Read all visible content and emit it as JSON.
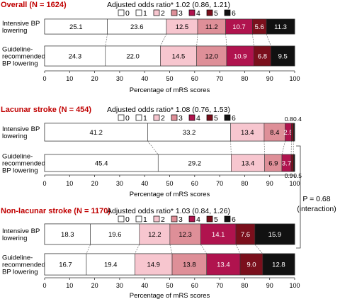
{
  "legend": {
    "labels": [
      "0",
      "1",
      "2",
      "3",
      "4",
      "5",
      "6"
    ],
    "colors": [
      "#ffffff",
      "#ffffff",
      "#f7c6cf",
      "#de8f98",
      "#b0134e",
      "#7a0f1c",
      "#111111"
    ]
  },
  "axis": {
    "xlabel": "Percentage of mRS scores",
    "ticks": [
      0,
      10,
      20,
      30,
      40,
      50,
      60,
      70,
      80,
      90,
      100
    ]
  },
  "interaction": {
    "p_text": "P = 0.68",
    "note": "(interaction)"
  },
  "chart_data": [
    {
      "type": "bar",
      "stacked": true,
      "orientation": "horizontal",
      "title": "Overall (N = 1624)",
      "odds_ratio": "Adjusted odds ratio* 1.02 (0.86, 1.21)",
      "xlabel": "Percentage of mRS scores",
      "xlim": [
        0,
        100
      ],
      "segment_labels": [
        "0",
        "1",
        "2",
        "3",
        "4",
        "5",
        "6"
      ],
      "rows": [
        {
          "label": [
            "Intensive BP",
            "lowering"
          ],
          "values": [
            25.1,
            23.6,
            12.5,
            11.2,
            10.7,
            5.6,
            11.3
          ],
          "value_labels": [
            "25.1",
            "23.6",
            "12.5",
            "11.2",
            "10.7",
            "5.6",
            "11.3"
          ]
        },
        {
          "label": [
            "Guideline-",
            "recommended",
            "BP lowering"
          ],
          "values": [
            24.3,
            22.0,
            14.5,
            12.0,
            10.9,
            6.8,
            9.5
          ],
          "value_labels": [
            "24.3",
            "22.0",
            "14.5",
            "12.0",
            "10.9",
            "6.8",
            "9.5"
          ]
        }
      ]
    },
    {
      "type": "bar",
      "stacked": true,
      "orientation": "horizontal",
      "title": "Lacunar stroke (N = 454)",
      "odds_ratio": "Adjusted odds ratio* 1.08 (0.76, 1.53)",
      "xlabel": "Percentage of mRS scores",
      "xlim": [
        0,
        100
      ],
      "segment_labels": [
        "0",
        "1",
        "2",
        "3",
        "4",
        "5",
        "6"
      ],
      "rows": [
        {
          "label": [
            "Intensive BP",
            "lowering"
          ],
          "values": [
            41.2,
            33.2,
            13.4,
            8.4,
            2.5,
            0.8,
            0.4
          ],
          "value_labels": [
            "41.2",
            "33.2",
            "13.4",
            "8.4",
            "2.5",
            "",
            ""
          ],
          "outside_labels": [
            "",
            "",
            "",
            "",
            "",
            "0.8",
            "0.4"
          ]
        },
        {
          "label": [
            "Guideline-",
            "recommended",
            "BP lowering"
          ],
          "values": [
            45.4,
            29.2,
            13.4,
            6.9,
            3.7,
            0.9,
            0.5
          ],
          "value_labels": [
            "45.4",
            "29.2",
            "13.4",
            "6.9",
            "3.7",
            "",
            ""
          ],
          "outside_labels": [
            "",
            "",
            "",
            "",
            "",
            "0.9",
            "0.5"
          ]
        }
      ]
    },
    {
      "type": "bar",
      "stacked": true,
      "orientation": "horizontal",
      "title": "Non-lacunar stroke (N = 1170)",
      "odds_ratio": "Adjusted odds ratio* 1.03 (0.84, 1.26)",
      "xlabel": "Percentage of mRS scores",
      "xlim": [
        0,
        100
      ],
      "segment_labels": [
        "0",
        "1",
        "2",
        "3",
        "4",
        "5",
        "6"
      ],
      "rows": [
        {
          "label": [
            "Intensive BP",
            "lowering"
          ],
          "values": [
            18.3,
            19.6,
            12.2,
            12.3,
            14.1,
            7.6,
            15.9
          ],
          "value_labels": [
            "18.3",
            "19.6",
            "12.2",
            "12.3",
            "14.1",
            "7.6",
            "15.9"
          ]
        },
        {
          "label": [
            "Guideline-",
            "recommended",
            "BP lowering"
          ],
          "values": [
            16.7,
            19.4,
            14.9,
            13.8,
            13.4,
            9.0,
            12.8
          ],
          "value_labels": [
            "16.7",
            "19.4",
            "14.9",
            "13.8",
            "13.4",
            "9.0",
            "12.8"
          ]
        }
      ]
    }
  ]
}
